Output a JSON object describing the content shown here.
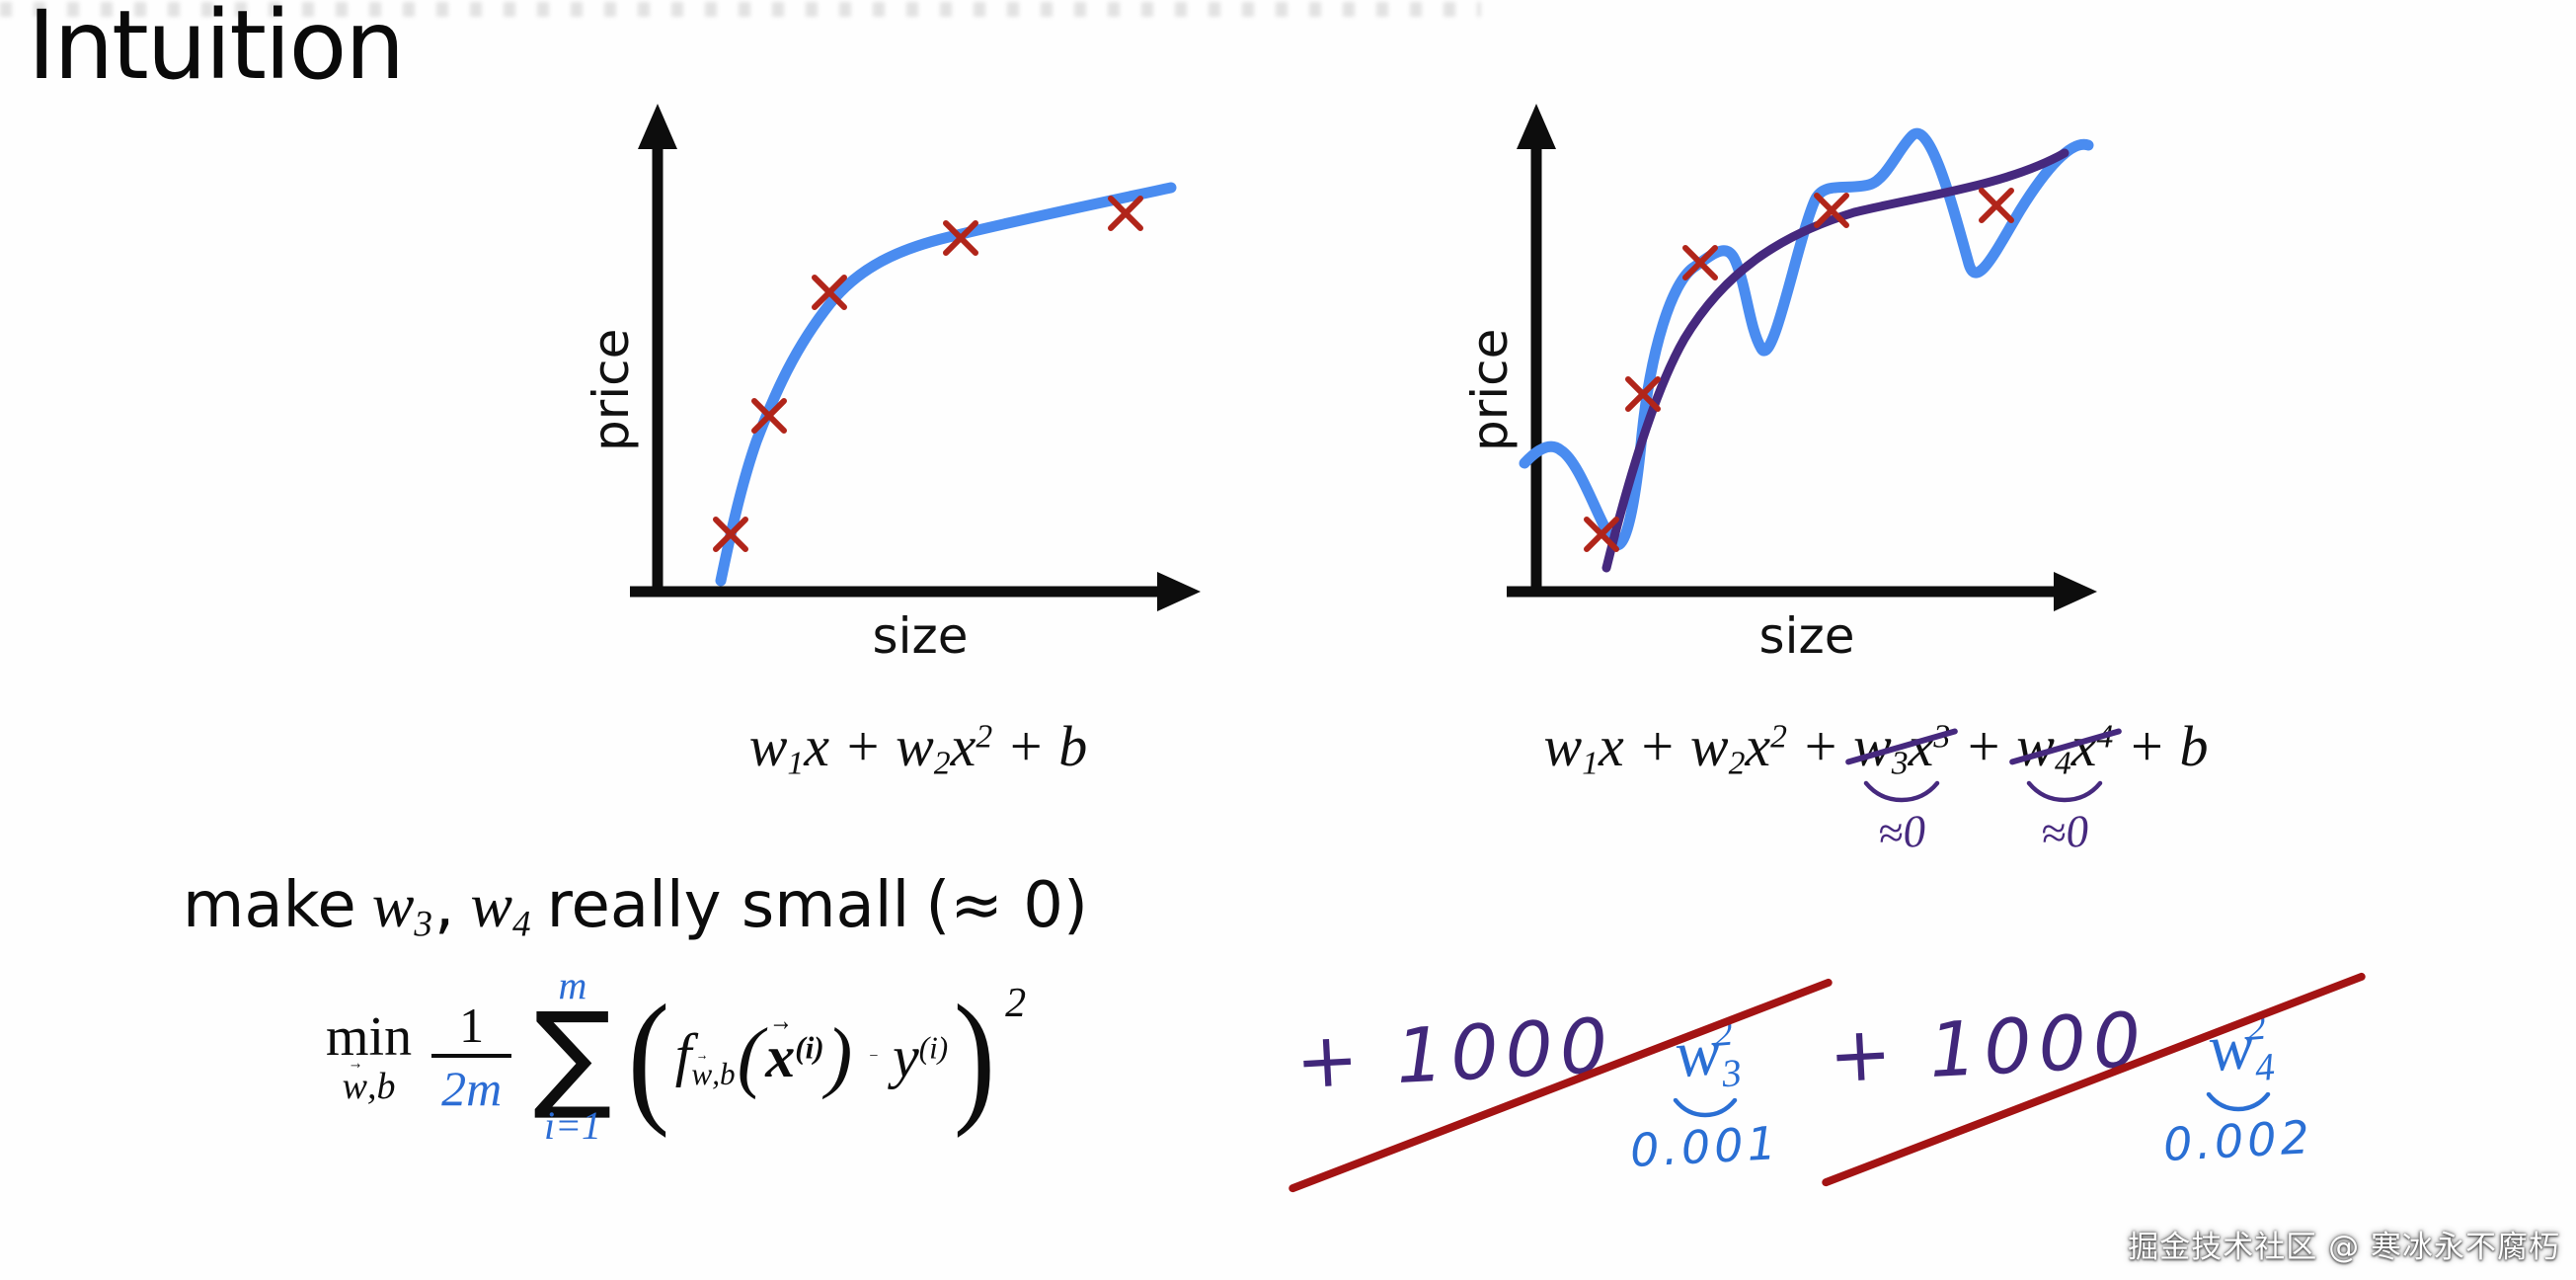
{
  "title": "Intuition",
  "watermark": "掘金技术社区 @ 寒冰永不腐朽",
  "colors": {
    "curve-blue": "#4a8cf0",
    "curve-purple": "#46297e",
    "marker-red": "#b1251a",
    "axis-black": "#0d0d0d",
    "math-blue": "#2b6cd4",
    "hand-purple": "#41277a",
    "hand-blue": "#2a6fd4",
    "slash-red": "#a31313"
  },
  "left_chart": {
    "ylabel": "price",
    "xlabel": "size",
    "points": [
      [
        140,
        446
      ],
      [
        179,
        326
      ],
      [
        240,
        201
      ],
      [
        373,
        146
      ],
      [
        540,
        121
      ]
    ]
  },
  "right_chart": {
    "ylabel": "price",
    "xlabel": "size",
    "points": [
      [
        172,
        446
      ],
      [
        214,
        304
      ],
      [
        272,
        171
      ],
      [
        405,
        118
      ],
      [
        572,
        113
      ]
    ]
  },
  "f_left": [
    "w",
    "1",
    "x",
    "+",
    "w",
    "2",
    "x",
    "2",
    "+",
    "b"
  ],
  "f_right": {
    "lead": [
      "w",
      "1",
      "x",
      "+",
      "w",
      "2",
      "x",
      "2",
      "+"
    ],
    "c1": [
      "w",
      "3",
      "x",
      "3"
    ],
    "mid": "+",
    "c2": [
      "w",
      "4",
      "x",
      "4"
    ],
    "tail_plus": "+",
    "b": "b",
    "approx1": "≈0",
    "approx2": "≈0"
  },
  "make_line": {
    "pre": "make",
    "w3": "w",
    "s3": "3",
    "comma": ",",
    "w4": "w",
    "s4": "4",
    "post": "really small",
    "paren": "(≈ 0)"
  },
  "objective": {
    "min": "min",
    "arrow": "→",
    "min_w": "w",
    "min_rest": ",b",
    "num": "1",
    "den": "2m",
    "sum_top": "m",
    "sum": "∑",
    "sum_bot": "i=1",
    "lp": "(",
    "f": "f",
    "fsub_w": "w",
    "fsub_rest": ",b",
    "lp2": "(",
    "x": "x",
    "xsup": "(i)",
    "rp2": ")",
    "minus": "−",
    "y": "y",
    "ysup": "(i)",
    "rp": ")",
    "sq": "2"
  },
  "penalties": [
    {
      "coeff": "+ 1000",
      "w": "w",
      "sub": "3",
      "sup": "2",
      "value": "0.001"
    },
    {
      "coeff": "+ 1000",
      "w": "w",
      "sub": "4",
      "sup": "2",
      "value": "0.002"
    }
  ]
}
